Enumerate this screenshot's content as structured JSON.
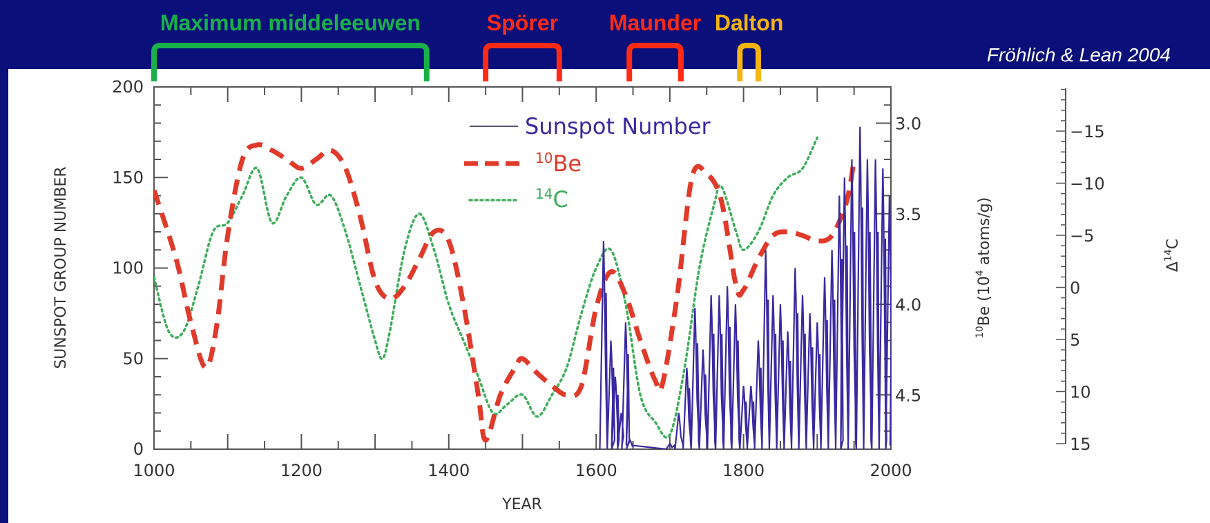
{
  "header": {
    "periods": [
      {
        "name": "Maximum middeleeuwen",
        "start": 1000,
        "end": 1370,
        "color": "#19b04a"
      },
      {
        "name": "Spörer",
        "start": 1450,
        "end": 1550,
        "color": "#ff2a14"
      },
      {
        "name": "Maunder",
        "start": 1645,
        "end": 1715,
        "color": "#ff2a14"
      },
      {
        "name": "Dalton",
        "start": 1795,
        "end": 1820,
        "color": "#f5b412"
      }
    ],
    "credit": "Fröhlich & Lean 2004"
  },
  "chart_data": {
    "type": "line",
    "xlabel": "YEAR",
    "ylabel": "SUNSPOT GROUP NUMBER",
    "xlim": [
      1000,
      2000
    ],
    "ylim": [
      0,
      200
    ],
    "x_ticks": [
      1000,
      1200,
      1400,
      1600,
      1800,
      2000
    ],
    "y_ticks": [
      0,
      50,
      100,
      150,
      200
    ],
    "right_axis_1": {
      "label_main": "Be (10",
      "label_sup_pre": "10",
      "label_sup_mid": "4",
      "label_rest": " atoms/g)",
      "ticks": [
        "3.0",
        "3.5",
        "4.0",
        "4.5"
      ],
      "tick_values": [
        3.0,
        3.5,
        4.0,
        4.5
      ],
      "range": [
        2.8,
        4.8
      ],
      "inverted": true
    },
    "right_axis_2": {
      "label_main": "Δ",
      "label_sup": "14",
      "label_rest": "C",
      "ticks": [
        "-15",
        "-10",
        "-5",
        "0",
        "5",
        "10",
        "15"
      ],
      "tick_values": [
        -15,
        -10,
        -5,
        0,
        5,
        10,
        15
      ],
      "inverted": true
    },
    "legend": {
      "placement": "top-center",
      "sunspot": "Sunspot Number",
      "be": "Be",
      "be_sup": "10",
      "c": "C",
      "c_sup": "14"
    },
    "colors": {
      "sunspot": "#3a2aa0",
      "be": "#e03a2a",
      "c": "#3fae5a"
    },
    "series": [
      {
        "name": "Be",
        "style": "dashed",
        "x": [
          1000,
          1030,
          1050,
          1070,
          1085,
          1100,
          1120,
          1140,
          1160,
          1180,
          1200,
          1220,
          1240,
          1260,
          1280,
          1300,
          1320,
          1340,
          1360,
          1380,
          1400,
          1420,
          1440,
          1450,
          1470,
          1490,
          1500,
          1520,
          1540,
          1560,
          1580,
          1600,
          1620,
          1640,
          1660,
          1680,
          1690,
          1710,
          1730,
          1750,
          1770,
          1790,
          1800,
          1820,
          1840,
          1860,
          1880,
          1900,
          1920,
          1940,
          1950
        ],
        "values": [
          143,
          105,
          70,
          45,
          68,
          118,
          160,
          168,
          165,
          160,
          155,
          160,
          165,
          155,
          128,
          93,
          83,
          90,
          105,
          120,
          115,
          80,
          30,
          5,
          30,
          45,
          50,
          42,
          35,
          30,
          35,
          78,
          98,
          85,
          60,
          38,
          36,
          85,
          150,
          152,
          137,
          90,
          88,
          105,
          118,
          120,
          118,
          115,
          118,
          137,
          160
        ]
      },
      {
        "name": "C",
        "style": "dotted",
        "x": [
          1000,
          1020,
          1040,
          1060,
          1080,
          1100,
          1120,
          1140,
          1160,
          1180,
          1200,
          1220,
          1240,
          1260,
          1280,
          1300,
          1310,
          1320,
          1340,
          1360,
          1380,
          1400,
          1420,
          1440,
          1460,
          1480,
          1500,
          1520,
          1540,
          1560,
          1580,
          1600,
          1620,
          1640,
          1660,
          1680,
          1700,
          1720,
          1740,
          1760,
          1770,
          1790,
          1800,
          1820,
          1840,
          1860,
          1880,
          1900
        ],
        "values": [
          95,
          65,
          65,
          90,
          120,
          125,
          140,
          155,
          125,
          140,
          150,
          135,
          140,
          120,
          90,
          60,
          50,
          65,
          110,
          130,
          110,
          80,
          60,
          40,
          20,
          25,
          30,
          18,
          30,
          45,
          75,
          100,
          110,
          80,
          30,
          15,
          8,
          45,
          100,
          135,
          145,
          120,
          110,
          120,
          140,
          150,
          155,
          172
        ]
      },
      {
        "name": "Sunspot Number",
        "style": "solid",
        "cycles": [
          [
            1610,
            115
          ],
          [
            1620,
            60
          ],
          [
            1626,
            40
          ],
          [
            1634,
            20
          ],
          [
            1640,
            70
          ],
          [
            1646,
            5
          ],
          [
            1700,
            3
          ],
          [
            1712,
            20
          ],
          [
            1723,
            45
          ],
          [
            1734,
            78
          ],
          [
            1745,
            55
          ],
          [
            1756,
            85
          ],
          [
            1767,
            85
          ],
          [
            1778,
            90
          ],
          [
            1789,
            80
          ],
          [
            1800,
            35
          ],
          [
            1810,
            35
          ],
          [
            1820,
            60
          ],
          [
            1830,
            110
          ],
          [
            1840,
            85
          ],
          [
            1850,
            80
          ],
          [
            1860,
            65
          ],
          [
            1870,
            100
          ],
          [
            1880,
            85
          ],
          [
            1890,
            75
          ],
          [
            1900,
            70
          ],
          [
            1910,
            95
          ],
          [
            1920,
            110
          ],
          [
            1930,
            140
          ],
          [
            1937,
            150
          ],
          [
            1947,
            160
          ],
          [
            1958,
            178
          ],
          [
            1968,
            160
          ],
          [
            1979,
            160
          ],
          [
            1989,
            155
          ],
          [
            1998,
            140
          ]
        ]
      }
    ]
  }
}
